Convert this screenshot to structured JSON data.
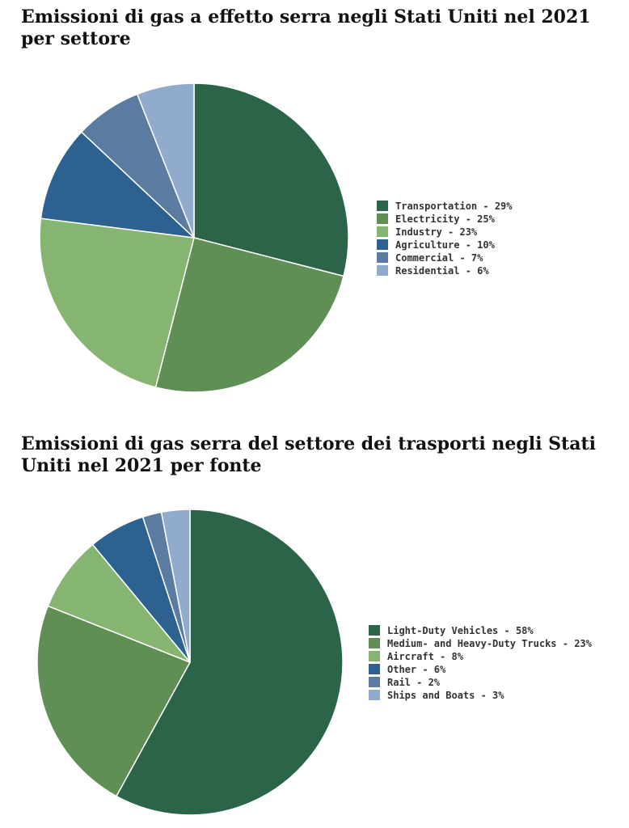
{
  "chart_data": [
    {
      "type": "pie",
      "title": "Emissioni di gas a effetto serra negli Stati Uniti nel 2021 per settore",
      "legend_position": "right",
      "series": [
        {
          "name": "Transportation",
          "value": 29,
          "label": "Transportation - 29%",
          "color": "#2b6449"
        },
        {
          "name": "Electricity",
          "value": 25,
          "label": "Electricity - 25%",
          "color": "#5f8f55"
        },
        {
          "name": "Industry",
          "value": 23,
          "label": "Industry - 23%",
          "color": "#86b572"
        },
        {
          "name": "Agriculture",
          "value": 10,
          "label": "Agriculture - 10%",
          "color": "#2c6190"
        },
        {
          "name": "Commercial",
          "value": 7,
          "label": "Commercial - 7%",
          "color": "#5c7ba1"
        },
        {
          "name": "Residential",
          "value": 6,
          "label": "Residential - 6%",
          "color": "#90abcc"
        }
      ]
    },
    {
      "type": "pie",
      "title": "Emissioni di gas serra del settore dei trasporti negli Stati Uniti nel 2021 per fonte",
      "legend_position": "right",
      "series": [
        {
          "name": "Light-Duty Vehicles",
          "value": 58,
          "label": "Light-Duty Vehicles - 58%",
          "color": "#2b6449"
        },
        {
          "name": "Medium- and Heavy-Duty Trucks",
          "value": 23,
          "label": "Medium- and Heavy-Duty Trucks - 23%",
          "color": "#5f8f55"
        },
        {
          "name": "Aircraft",
          "value": 8,
          "label": "Aircraft - 8%",
          "color": "#86b572"
        },
        {
          "name": "Other",
          "value": 6,
          "label": "Other - 6%",
          "color": "#2c6190"
        },
        {
          "name": "Rail",
          "value": 2,
          "label": "Rail - 2%",
          "color": "#5c7ba1"
        },
        {
          "name": "Ships and Boats",
          "value": 3,
          "label": "Ships and Boats - 3%",
          "color": "#90abcc"
        }
      ]
    }
  ]
}
